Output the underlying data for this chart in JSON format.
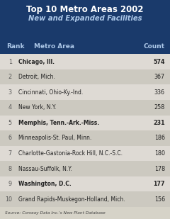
{
  "title_line1": "Top 10 Metro Areas 2002",
  "title_line2": "New and Expanded Facilities",
  "header_bg": "#1a3a6b",
  "header_text_color": "#ffffff",
  "col_header_rank": "Rank",
  "col_header_area": "Metro Area",
  "col_header_count": "Count",
  "rows": [
    {
      "rank": "1",
      "area": "Chicago, Ill.",
      "count": "574",
      "bold": true
    },
    {
      "rank": "2",
      "area": "Detroit, Mich.",
      "count": "367",
      "bold": false
    },
    {
      "rank": "3",
      "area": "Cincinnati, Ohio-Ky.-Ind.",
      "count": "336",
      "bold": false
    },
    {
      "rank": "4",
      "area": "New York, N.Y.",
      "count": "258",
      "bold": false
    },
    {
      "rank": "5",
      "area": "Memphis, Tenn.-Ark.-Miss.",
      "count": "231",
      "bold": true
    },
    {
      "rank": "6",
      "area": "Minneapolis-St. Paul, Minn.",
      "count": "186",
      "bold": false
    },
    {
      "rank": "7",
      "area": "Charlotte-Gastonia-Rock Hill, N.C.-S.C.",
      "count": "180",
      "bold": false
    },
    {
      "rank": "8",
      "area": "Nassau-Suffolk, N.Y.",
      "count": "178",
      "bold": false
    },
    {
      "rank": "9",
      "area": "Washington, D.C.",
      "count": "177",
      "bold": true
    },
    {
      "rank": "10",
      "area": "Grand Rapids-Muskegon-Holland, Mich.",
      "count": "156",
      "bold": false
    }
  ],
  "source_text": "Source: Conway Data Inc.'s New Plant Database",
  "bg_color": "#d6d3c8",
  "row_colors": [
    "#dedad4",
    "#ccc9c0"
  ],
  "text_color": "#222222",
  "rank_color": "#555555"
}
